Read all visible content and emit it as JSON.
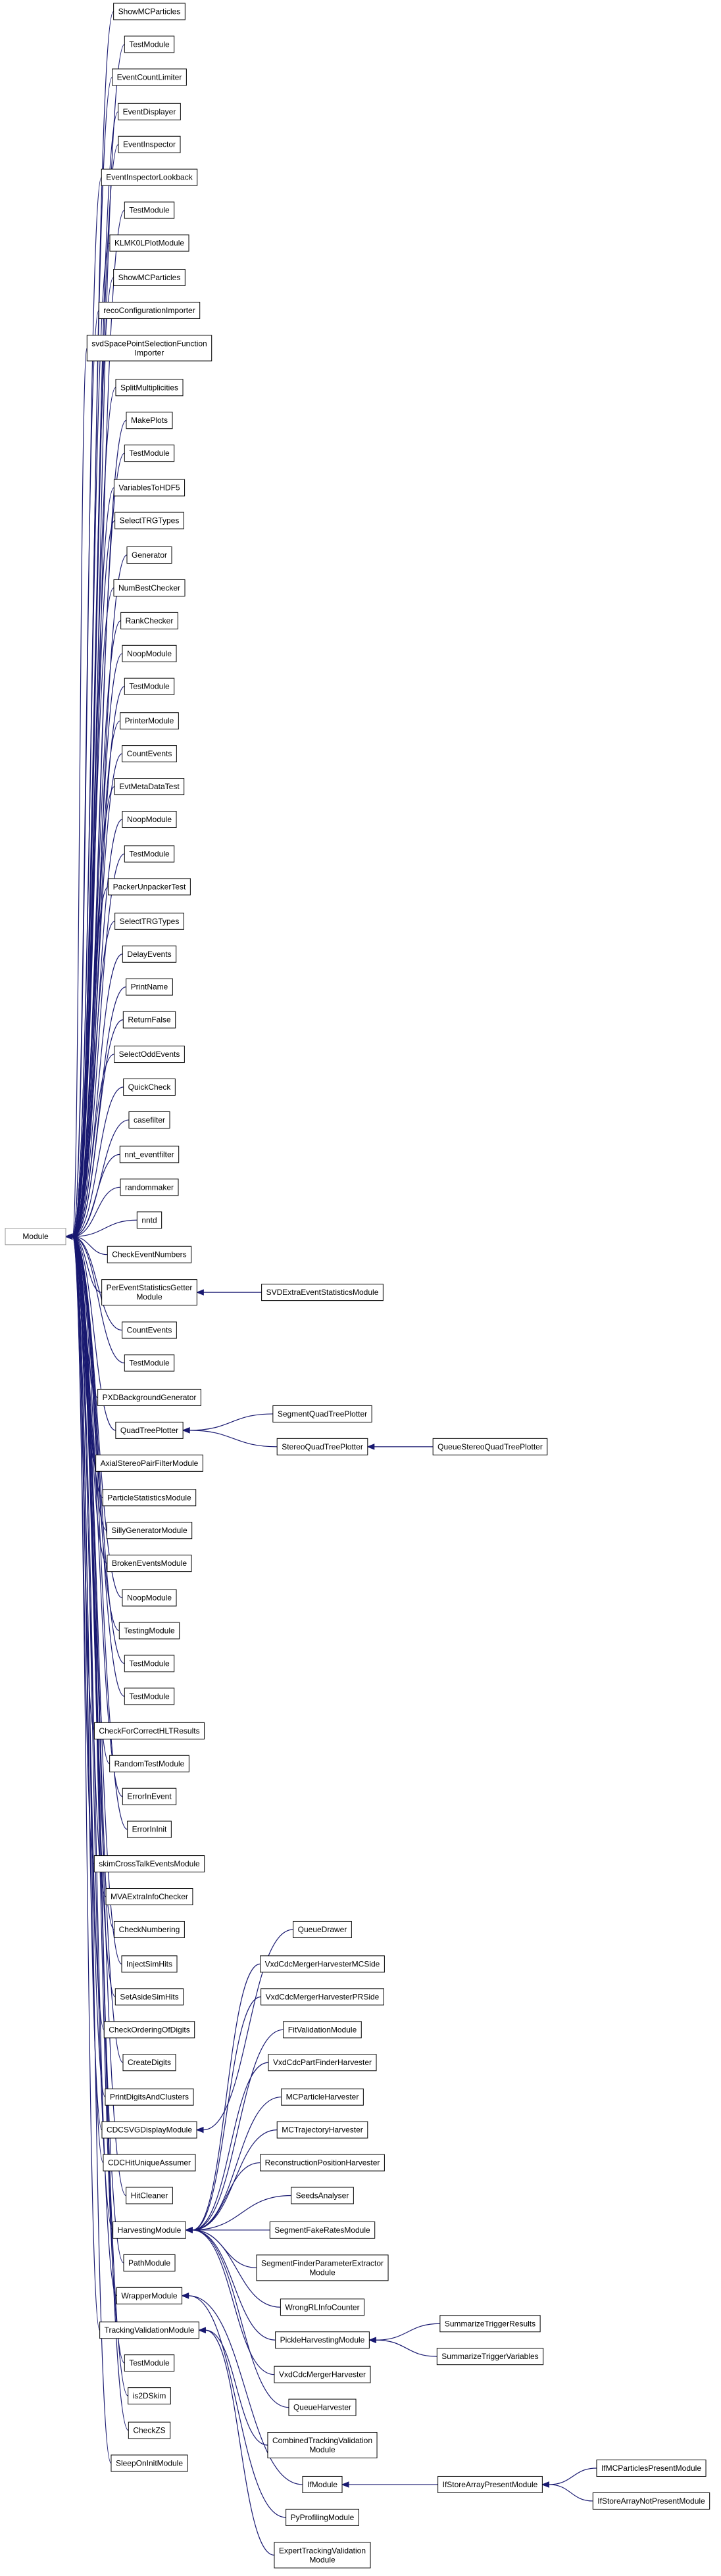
{
  "nodes": [
    [
      "Module"
    ],
    [
      "ShowMCParticles"
    ],
    [
      "TestModule"
    ],
    [
      "EventCountLimiter"
    ],
    [
      "EventDisplayer"
    ],
    [
      "EventInspector"
    ],
    [
      "EventInspectorLookback"
    ],
    [
      "TestModule"
    ],
    [
      "KLMK0LPlotModule"
    ],
    [
      "ShowMCParticles"
    ],
    [
      "recoConfigurationImporter"
    ],
    [
      "svdSpacePointSelectionFunction",
      "Importer"
    ],
    [
      "SplitMultiplicities"
    ],
    [
      "MakePlots"
    ],
    [
      "TestModule"
    ],
    [
      "VariablesToHDF5"
    ],
    [
      "SelectTRGTypes"
    ],
    [
      "Generator"
    ],
    [
      "NumBestChecker"
    ],
    [
      "RankChecker"
    ],
    [
      "NoopModule"
    ],
    [
      "TestModule"
    ],
    [
      "PrinterModule"
    ],
    [
      "CountEvents"
    ],
    [
      "EvtMetaDataTest"
    ],
    [
      "NoopModule"
    ],
    [
      "TestModule"
    ],
    [
      "PackerUnpackerTest"
    ],
    [
      "SelectTRGTypes"
    ],
    [
      "DelayEvents"
    ],
    [
      "PrintName"
    ],
    [
      "ReturnFalse"
    ],
    [
      "SelectOddEvents"
    ],
    [
      "QuickCheck"
    ],
    [
      "casefilter"
    ],
    [
      "nnt_eventfilter"
    ],
    [
      "randommaker"
    ],
    [
      "nntd"
    ],
    [
      "CheckEventNumbers"
    ],
    [
      "PerEventStatisticsGetter",
      "Module"
    ],
    [
      "CountEvents"
    ],
    [
      "TestModule"
    ],
    [
      "PXDBackgroundGenerator"
    ],
    [
      "QuadTreePlotter"
    ],
    [
      "AxialStereoPairFilterModule"
    ],
    [
      "ParticleStatisticsModule"
    ],
    [
      "SillyGeneratorModule"
    ],
    [
      "BrokenEventsModule"
    ],
    [
      "NoopModule"
    ],
    [
      "TestingModule"
    ],
    [
      "TestModule"
    ],
    [
      "TestModule"
    ],
    [
      "CheckForCorrectHLTResults"
    ],
    [
      "RandomTestModule"
    ],
    [
      "ErrorInEvent"
    ],
    [
      "ErrorInInit"
    ],
    [
      "skimCrossTalkEventsModule"
    ],
    [
      "MVAExtraInfoChecker"
    ],
    [
      "CheckNumbering"
    ],
    [
      "InjectSimHits"
    ],
    [
      "SetAsideSimHits"
    ],
    [
      "CheckOrderingOfDigits"
    ],
    [
      "CreateDigits"
    ],
    [
      "PrintDigitsAndClusters"
    ],
    [
      "CDCSVGDisplayModule"
    ],
    [
      "CDCHitUniqueAssumer"
    ],
    [
      "HitCleaner"
    ],
    [
      "HarvestingModule"
    ],
    [
      "PathModule"
    ],
    [
      "WrapperModule"
    ],
    [
      "TrackingValidationModule"
    ],
    [
      "TestModule"
    ],
    [
      "is2DSkim"
    ],
    [
      "CheckZS"
    ],
    [
      "SleepOnInitModule"
    ],
    [
      "SVDExtraEventStatisticsModule"
    ],
    [
      "SegmentQuadTreePlotter"
    ],
    [
      "StereoQuadTreePlotter"
    ],
    [
      "QueueStereoQuadTreePlotter"
    ],
    [
      "QueueDrawer"
    ],
    [
      "VxdCdcMergerHarvesterMCSide"
    ],
    [
      "VxdCdcMergerHarvesterPRSide"
    ],
    [
      "FitValidationModule"
    ],
    [
      "VxdCdcPartFinderHarvester"
    ],
    [
      "MCParticleHarvester"
    ],
    [
      "MCTrajectoryHarvester"
    ],
    [
      "ReconstructionPositionHarvester"
    ],
    [
      "SeedsAnalyser"
    ],
    [
      "SegmentFakeRatesModule"
    ],
    [
      "SegmentFinderParameterExtractor",
      "Module"
    ],
    [
      "WrongRLInfoCounter"
    ],
    [
      "PickleHarvestingModule"
    ],
    [
      "VxdCdcMergerHarvester"
    ],
    [
      "QueueHarvester"
    ],
    [
      "CombinedTrackingValidation",
      "Module"
    ],
    [
      "IfModule"
    ],
    [
      "PyProfilingModule"
    ],
    [
      "ExpertTrackingValidation",
      "Module"
    ],
    [
      "SummarizeTriggerResults"
    ],
    [
      "SummarizeTriggerVariables"
    ],
    [
      "IfStoreArrayPresentModule"
    ],
    [
      "IfMCParticlesPresentModule"
    ],
    [
      "IfStoreArrayNotPresentModule"
    ]
  ]
}
